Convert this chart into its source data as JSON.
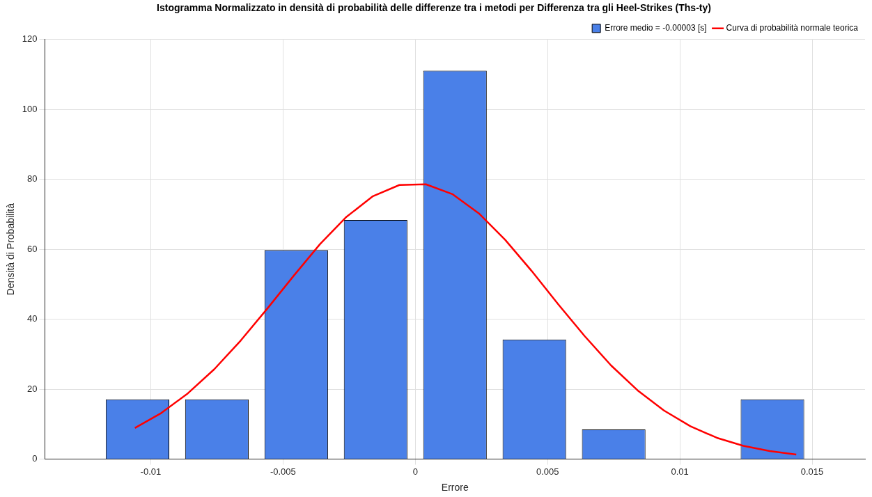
{
  "chart_data": {
    "type": "histogram",
    "title": "Istogramma Normalizzato in densità di probabilità delle differenze tra i metodi per Differenza tra gli Heel-Strikes (Ths-ty)",
    "xlabel": "Errore",
    "ylabel": "Densità di Probabilità",
    "bins": [
      -0.012,
      -0.009,
      -0.006,
      -0.003,
      0,
      0.003,
      0.006,
      0.009,
      0.012,
      0.015
    ],
    "series": [
      {
        "name": "Errore medio = -0.00003 [s]",
        "color": "#4a80e8",
        "values": [
          17.1,
          17.1,
          59.8,
          68.4,
          111.1,
          34.2,
          8.5,
          0,
          17.1
        ]
      },
      {
        "type": "line",
        "name": "Curva di probabilità normale teorica",
        "color": "#ff0000",
        "x": [
          -0.0106,
          -0.0096,
          -0.0086,
          -0.0076,
          -0.0066,
          -0.0056,
          -0.0046,
          -0.0036,
          -0.0026,
          -0.0016,
          -0.0006,
          0.0004,
          0.0014,
          0.0024,
          0.0034,
          0.0044,
          0.0054,
          0.0064,
          0.0074,
          0.0084,
          0.0094,
          0.0104,
          0.0114,
          0.0124,
          0.0134,
          0.0144
        ],
        "values": [
          8.9,
          13.2,
          18.8,
          25.7,
          33.9,
          43.0,
          52.4,
          61.5,
          69.3,
          75.2,
          78.4,
          78.6,
          75.8,
          70.3,
          62.7,
          53.8,
          44.3,
          35.2,
          26.8,
          19.7,
          13.9,
          9.4,
          6.1,
          3.8,
          2.3,
          1.3
        ]
      }
    ],
    "xlim": [
      -0.014,
      0.017
    ],
    "ylim": [
      0,
      120
    ],
    "xticks": [
      -0.01,
      -0.005,
      0,
      0.005,
      0.01,
      0.015
    ],
    "yticks": [
      0,
      20,
      40,
      60,
      80,
      100,
      120
    ],
    "grid": true,
    "legend": "top right",
    "marker": "none",
    "line_style": "solid"
  }
}
